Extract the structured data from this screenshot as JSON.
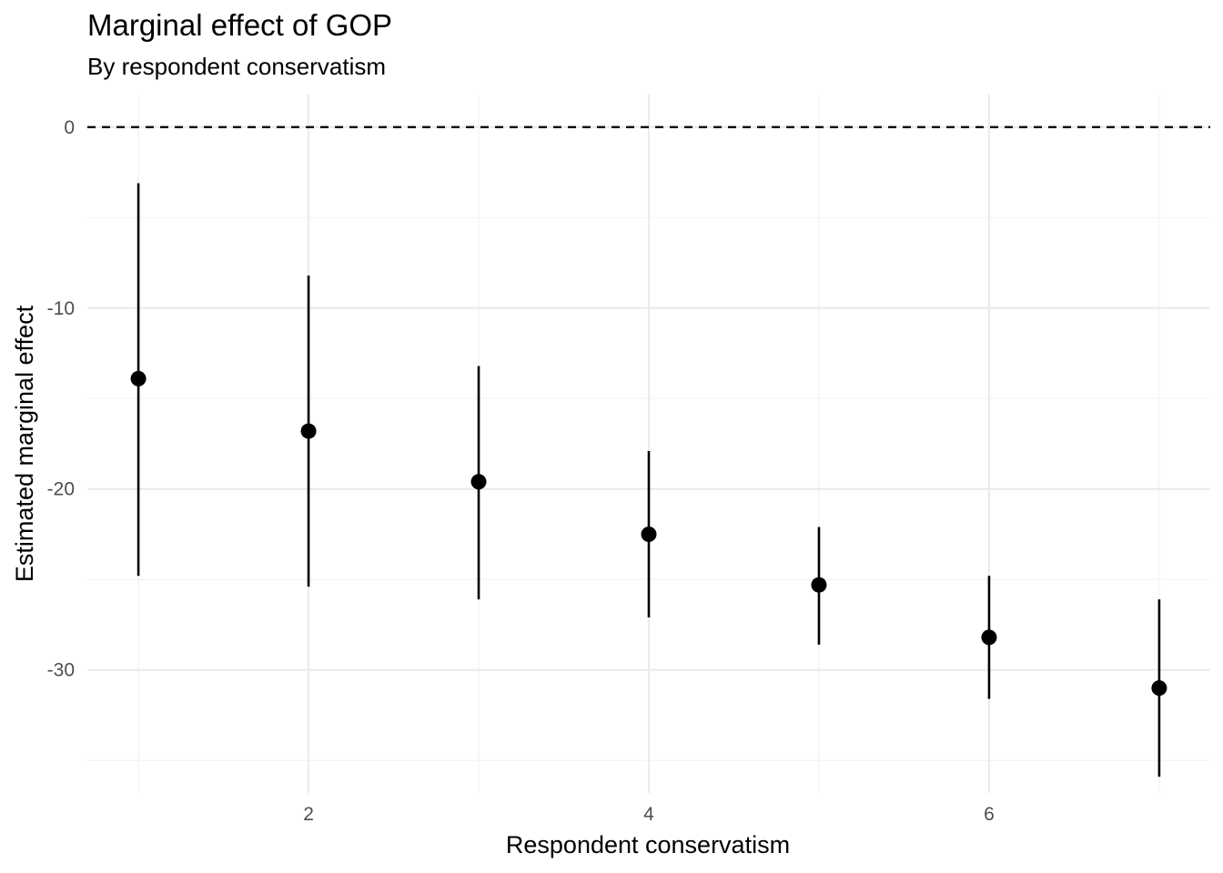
{
  "chart_data": {
    "type": "scatter",
    "title": "Marginal effect of GOP",
    "subtitle": "By respondent conservatism",
    "xlabel": "Respondent conservatism",
    "ylabel": "Estimated marginal effect",
    "xlim": [
      0.7,
      7.3
    ],
    "ylim": [
      -36.8,
      1.8
    ],
    "x_ticks": [
      2,
      4,
      6
    ],
    "x_tick_labels": [
      "2",
      "4",
      "6"
    ],
    "y_ticks": [
      0,
      -10,
      -20,
      -30
    ],
    "y_tick_labels": [
      "0",
      "-10",
      "-20",
      "-30"
    ],
    "reference_line": {
      "y": 0,
      "style": "dashed"
    },
    "grid": true,
    "points": [
      {
        "x": 1,
        "estimate": -13.9,
        "lower": -24.8,
        "upper": -3.1
      },
      {
        "x": 2,
        "estimate": -16.8,
        "lower": -25.4,
        "upper": -8.2
      },
      {
        "x": 3,
        "estimate": -19.6,
        "lower": -26.1,
        "upper": -13.2
      },
      {
        "x": 4,
        "estimate": -22.5,
        "lower": -27.1,
        "upper": -17.9
      },
      {
        "x": 5,
        "estimate": -25.3,
        "lower": -28.6,
        "upper": -22.1
      },
      {
        "x": 6,
        "estimate": -28.2,
        "lower": -31.6,
        "upper": -24.8
      },
      {
        "x": 7,
        "estimate": -31.0,
        "lower": -35.9,
        "upper": -26.1
      }
    ],
    "colors": {
      "points": "#000000",
      "grid_major": "#ebebeb",
      "grid_minor": "#f2f2f2",
      "reference": "#000000"
    }
  }
}
